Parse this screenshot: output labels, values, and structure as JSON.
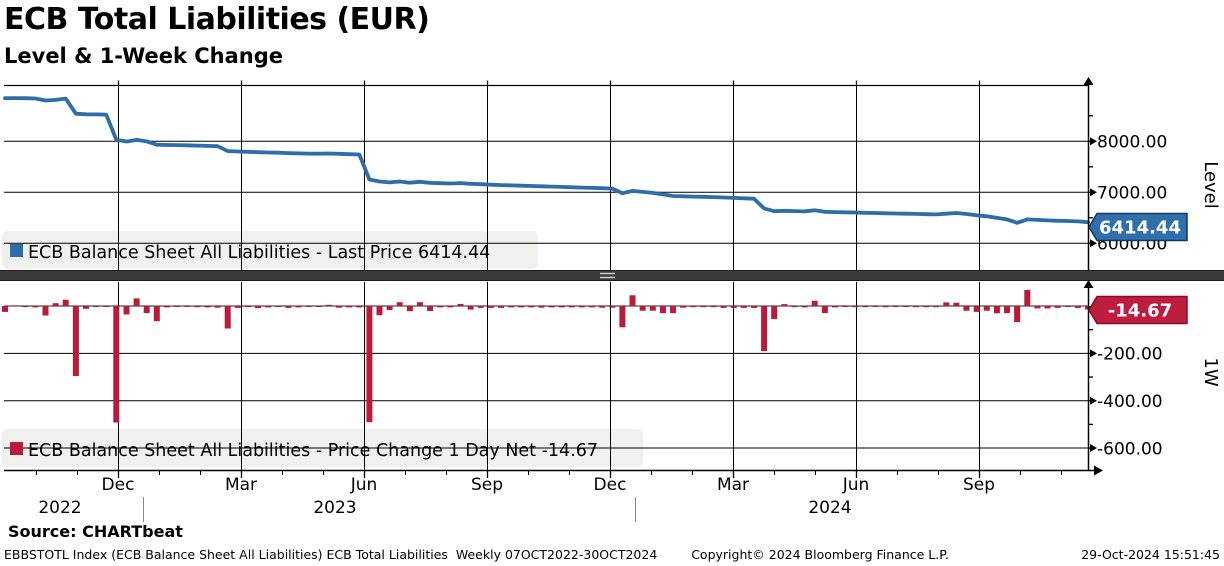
{
  "header": {
    "title": "ECB Total Liabilities (EUR)",
    "subtitle": "Level & 1-Week Change"
  },
  "source_line": "Source: CHARTbeat",
  "footer": {
    "left": "EBBSTOTL Index (ECB Balance Sheet All Liabilities) ECB Total Liabilities  Weekly 07OCT2022-30OCT2024",
    "center": "Copyright© 2024 Bloomberg Finance L.P.",
    "right": "29-Oct-2024 15:51:45"
  },
  "colors": {
    "line_blue": "#2e6da8",
    "bar_red": "#bb1b39",
    "badge_blue_fill": "#2f6fae",
    "badge_blue_border": "#16365c",
    "badge_red_fill": "#c01d3e",
    "badge_red_border": "#7e1028",
    "grid": "#000000",
    "legend_bg": "#f0f0ee",
    "separator": "#3b3b3b"
  },
  "top_panel": {
    "axis_label": "Level",
    "legend_label": "ECB Balance Sheet All Liabilities - Last Price 6414.44",
    "last_value_label": "6414.44",
    "tick_labels": [
      "8000.00",
      "7000.00",
      "6000.00"
    ]
  },
  "bottom_panel": {
    "axis_label": "1W",
    "legend_label": "ECB Balance Sheet All Liabilities - Price Change 1 Day Net -14.67",
    "last_value_label": "-14.67",
    "tick_labels": [
      "-200.00",
      "-400.00",
      "-600.00"
    ]
  },
  "x_axis": {
    "month_labels": [
      "Dec",
      "Mar",
      "Jun",
      "Sep",
      "Dec",
      "Mar",
      "Jun",
      "Sep"
    ],
    "year_labels": [
      "2022",
      "2023",
      "2024"
    ]
  },
  "chart_data": [
    {
      "type": "line",
      "name": "ECB Balance Sheet All Liabilities - Last Price",
      "frequency": "weekly",
      "period": "07OCT2022-30OCT2024",
      "last_value": 6414.44,
      "ylim": [
        5480,
        9100
      ],
      "yticks_major": [
        6000,
        7000,
        8000
      ],
      "yticks_minor": [
        6500,
        7500,
        8500
      ],
      "legend_position": "bottom-left of panel",
      "grid": "on",
      "values": [
        8845,
        8848,
        8846,
        8840,
        8800,
        8812,
        8838,
        8542,
        8530,
        8528,
        8524,
        8032,
        7996,
        8028,
        7998,
        7934,
        7928,
        7925,
        7921,
        7916,
        7910,
        7903,
        7808,
        7800,
        7795,
        7786,
        7780,
        7776,
        7768,
        7762,
        7758,
        7756,
        7761,
        7754,
        7748,
        7742,
        7251,
        7212,
        7195,
        7211,
        7189,
        7205,
        7184,
        7178,
        7172,
        7181,
        7166,
        7158,
        7150,
        7142,
        7136,
        7130,
        7124,
        7117,
        7111,
        7105,
        7099,
        7093,
        7087,
        7080,
        7073,
        6983,
        7028,
        7008,
        6988,
        6958,
        6928,
        6921,
        6916,
        6911,
        6906,
        6898,
        6890,
        6882,
        6874,
        6684,
        6629,
        6637,
        6632,
        6626,
        6648,
        6618,
        6612,
        6608,
        6603,
        6598,
        6594,
        6589,
        6585,
        6581,
        6576,
        6571,
        6566,
        6581,
        6595,
        6575,
        6550,
        6530,
        6499,
        6469,
        6401,
        6469,
        6459,
        6449,
        6441,
        6437,
        6429.11,
        6414.44
      ]
    },
    {
      "type": "bar",
      "name": "ECB Balance Sheet All Liabilities - Price Change 1 Day Net",
      "frequency": "weekly",
      "period": "07OCT2022-30OCT2024",
      "last_value": -14.67,
      "ylim": [
        -692,
        100
      ],
      "yticks_major": [
        -200,
        -400,
        -600
      ],
      "yticks_minor": [
        -100,
        -300,
        -500
      ],
      "legend_position": "bottom-left of panel",
      "grid": "on",
      "values": [
        -25,
        3,
        -2,
        -6,
        -40,
        12,
        26,
        -296,
        -12,
        -2,
        -4,
        -492,
        -36,
        32,
        -30,
        -64,
        -6,
        -3,
        -4,
        -5,
        -6,
        -7,
        -95,
        -8,
        -5,
        -9,
        -6,
        -4,
        -8,
        -6,
        -4,
        -2,
        5,
        -7,
        -6,
        -6,
        -491,
        -39,
        -17,
        16,
        -22,
        16,
        -21,
        -6,
        -6,
        9,
        -15,
        -8,
        -8,
        -8,
        -6,
        -6,
        -6,
        -7,
        -6,
        -6,
        -6,
        -6,
        -6,
        -7,
        -7,
        -90,
        45,
        -20,
        -20,
        -30,
        -30,
        -7,
        -5,
        -5,
        -5,
        -8,
        -8,
        -8,
        -8,
        -190,
        -55,
        8,
        -5,
        -6,
        22,
        -30,
        -6,
        -4,
        -5,
        -5,
        -4,
        -5,
        -4,
        -4,
        -5,
        -5,
        -5,
        15,
        14,
        -20,
        -25,
        -20,
        -31,
        -30,
        -68,
        68,
        -10,
        -10,
        -8,
        -4,
        -7.89,
        -14.67
      ]
    }
  ]
}
